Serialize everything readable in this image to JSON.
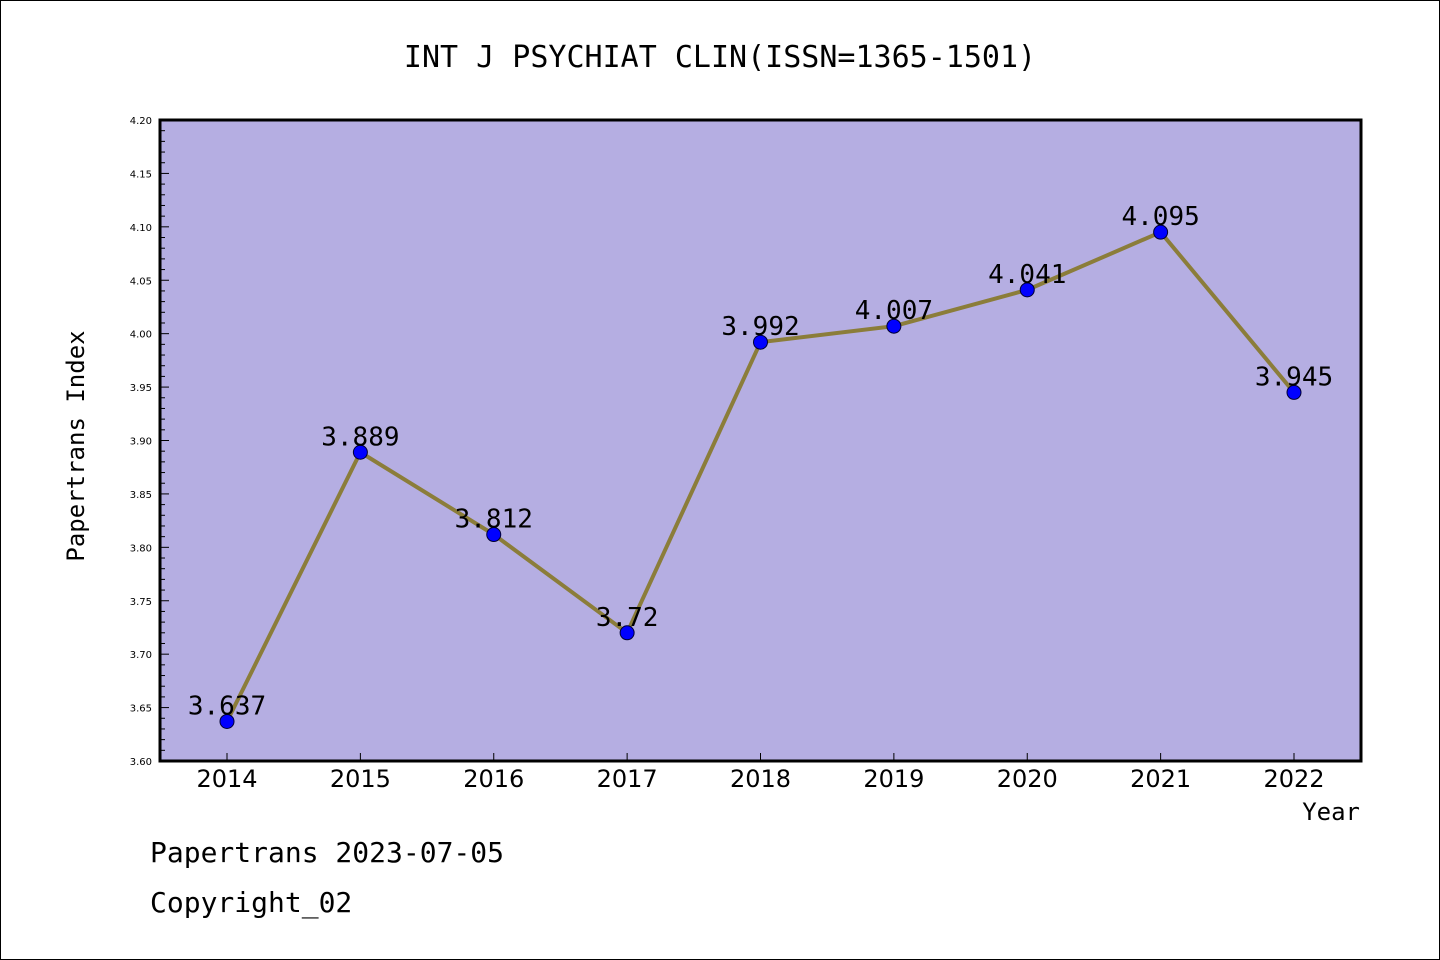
{
  "chart_data": {
    "type": "line",
    "title": "INT J PSYCHIAT CLIN(ISSN=1365-1501)",
    "xlabel": "Year",
    "ylabel": "Papertrans Index",
    "categories": [
      "2014",
      "2015",
      "2016",
      "2017",
      "2018",
      "2019",
      "2020",
      "2021",
      "2022"
    ],
    "values": [
      3.637,
      3.889,
      3.812,
      3.72,
      3.992,
      4.007,
      4.041,
      4.095,
      3.945
    ],
    "data_labels": [
      "3.637",
      "3.889",
      "3.812",
      "3.72",
      "3.992",
      "4.007",
      "4.041",
      "4.095",
      "3.945"
    ],
    "ylim": [
      3.6,
      4.2
    ],
    "yticks": [
      "3.60",
      "3.65",
      "3.70",
      "3.75",
      "3.80",
      "3.85",
      "3.90",
      "3.95",
      "4.00",
      "4.05",
      "4.10",
      "4.15",
      "4.20"
    ],
    "grid": false,
    "colors": {
      "plot_background": "#b5aee2",
      "line": "#8b7d3a",
      "marker": "#0000ff"
    }
  },
  "footer": {
    "line1": "Papertrans 2023-07-05",
    "line2": "Copyright_02"
  }
}
